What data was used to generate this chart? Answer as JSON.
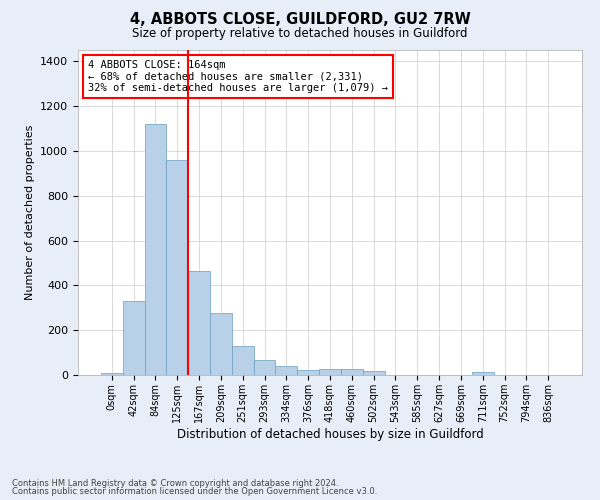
{
  "title": "4, ABBOTS CLOSE, GUILDFORD, GU2 7RW",
  "subtitle": "Size of property relative to detached houses in Guildford",
  "xlabel": "Distribution of detached houses by size in Guildford",
  "ylabel": "Number of detached properties",
  "bar_labels": [
    "0sqm",
    "42sqm",
    "84sqm",
    "125sqm",
    "167sqm",
    "209sqm",
    "251sqm",
    "293sqm",
    "334sqm",
    "376sqm",
    "418sqm",
    "460sqm",
    "502sqm",
    "543sqm",
    "585sqm",
    "627sqm",
    "669sqm",
    "711sqm",
    "752sqm",
    "794sqm",
    "836sqm"
  ],
  "bar_values": [
    10,
    330,
    1120,
    960,
    465,
    275,
    130,
    68,
    38,
    22,
    25,
    25,
    18,
    0,
    0,
    0,
    0,
    12,
    0,
    0,
    0
  ],
  "bar_color": "#b8d0e8",
  "bar_edge_color": "#6a9fc0",
  "vline_color": "red",
  "annotation_text": "4 ABBOTS CLOSE: 164sqm\n← 68% of detached houses are smaller (2,331)\n32% of semi-detached houses are larger (1,079) →",
  "annotation_box_color": "white",
  "annotation_box_edge_color": "red",
  "ylim": [
    0,
    1450
  ],
  "yticks": [
    0,
    200,
    400,
    600,
    800,
    1000,
    1200,
    1400
  ],
  "bg_color": "#e8eef8",
  "plot_bg_color": "#ffffff",
  "grid_color": "#cccccc",
  "footer_line1": "Contains HM Land Registry data © Crown copyright and database right 2024.",
  "footer_line2": "Contains public sector information licensed under the Open Government Licence v3.0."
}
